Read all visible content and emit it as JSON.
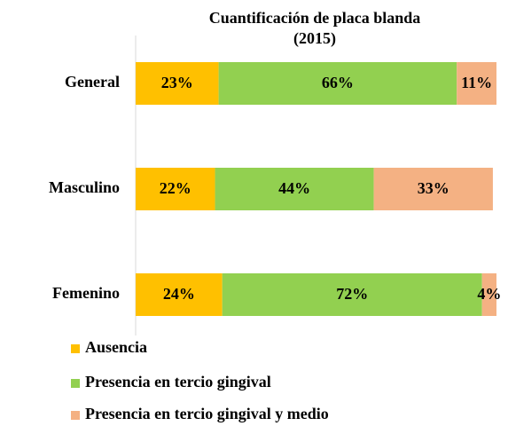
{
  "chart_data": {
    "type": "stacked_bar_horizontal",
    "title": [
      "Cuantificación de placa blanda",
      "(2015)"
    ],
    "categories": [
      "General",
      "Masculino",
      "Femenino"
    ],
    "xlim": [
      0,
      100
    ],
    "series": [
      {
        "name": "Ausencia",
        "color": "#ffc000",
        "values": [
          23,
          22,
          24
        ],
        "value_labels": [
          "23%",
          "22%",
          "24%"
        ]
      },
      {
        "name": "Presencia en tercio gingival",
        "color": "#92d050",
        "values": [
          66,
          44,
          72
        ],
        "value_labels": [
          "66%",
          "44%",
          "72%"
        ]
      },
      {
        "name": "Presencia en tercio gingival y medio",
        "color": "#f4b183",
        "values": [
          11,
          33,
          4
        ],
        "value_labels": [
          "11%",
          "33%",
          "4%"
        ]
      }
    ]
  }
}
